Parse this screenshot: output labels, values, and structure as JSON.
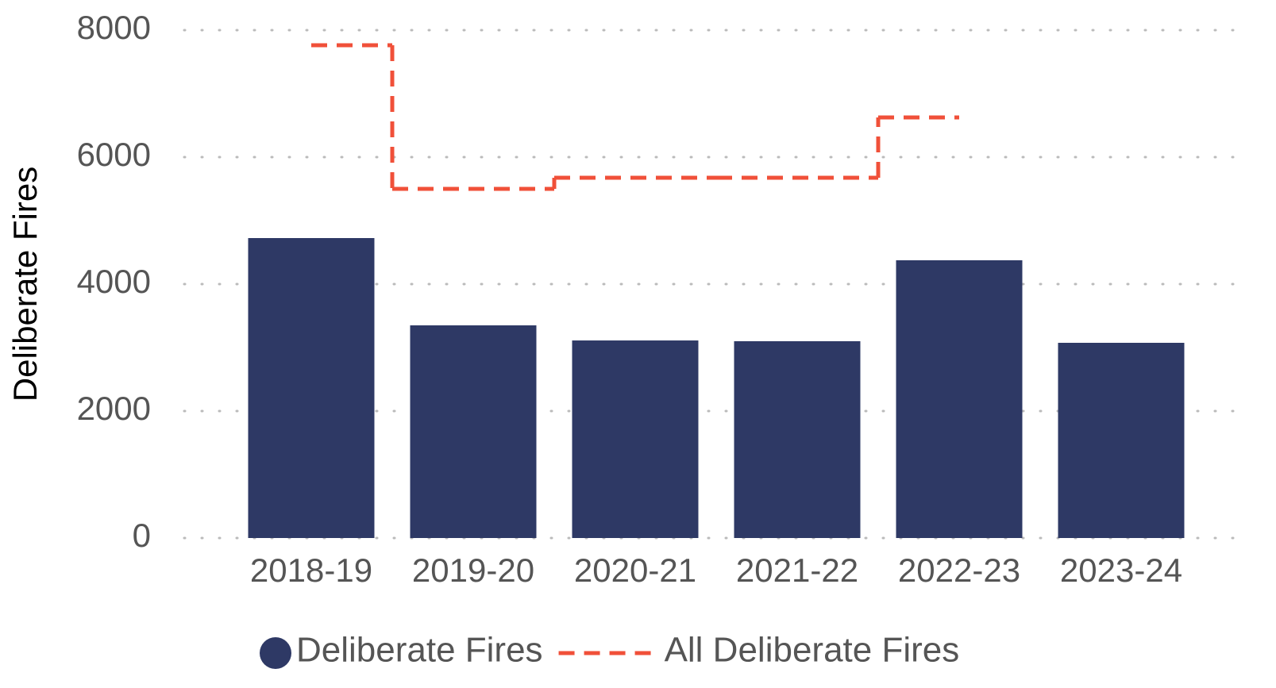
{
  "chart_data": {
    "type": "bar",
    "categories": [
      "2018-19",
      "2019-20",
      "2020-21",
      "2021-22",
      "2022-23",
      "2023-24"
    ],
    "series": [
      {
        "name": "Deliberate Fires",
        "type": "bar",
        "color": "#2e3965",
        "values": [
          4725,
          3350,
          3112,
          3100,
          4375,
          3075
        ]
      },
      {
        "name": "All Deliberate Fires",
        "type": "step",
        "color": "#f05039",
        "values": [
          7762,
          5500,
          5675,
          5675,
          6625,
          null
        ]
      }
    ],
    "ylabel": "Deliberate Fires",
    "ylim": [
      0,
      8000
    ],
    "yticks": [
      0,
      2000,
      4000,
      6000,
      8000
    ],
    "grid": true,
    "legend": "bottom"
  }
}
